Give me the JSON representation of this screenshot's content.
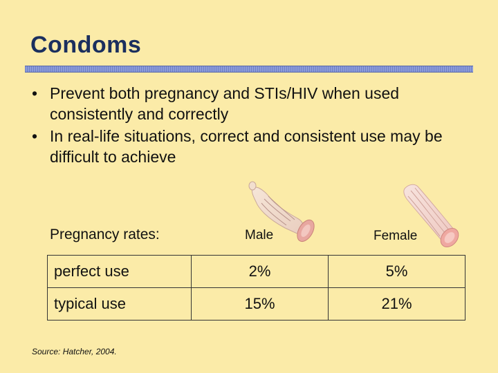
{
  "slide": {
    "title": "Condoms",
    "bullets": [
      "Prevent both pregnancy and STIs/HIV when used consistently and correctly",
      "In real-life situations, correct and consistent use may be difficult to achieve"
    ],
    "bullet_marker": "•"
  },
  "table": {
    "header_label": "Pregnancy rates:",
    "columns": [
      "Male",
      "Female"
    ],
    "rows": [
      {
        "label": "perfect use",
        "male": "2%",
        "female": "5%"
      },
      {
        "label": "typical use",
        "male": "15%",
        "female": "21%"
      }
    ]
  },
  "source": "Source: Hatcher, 2004."
}
